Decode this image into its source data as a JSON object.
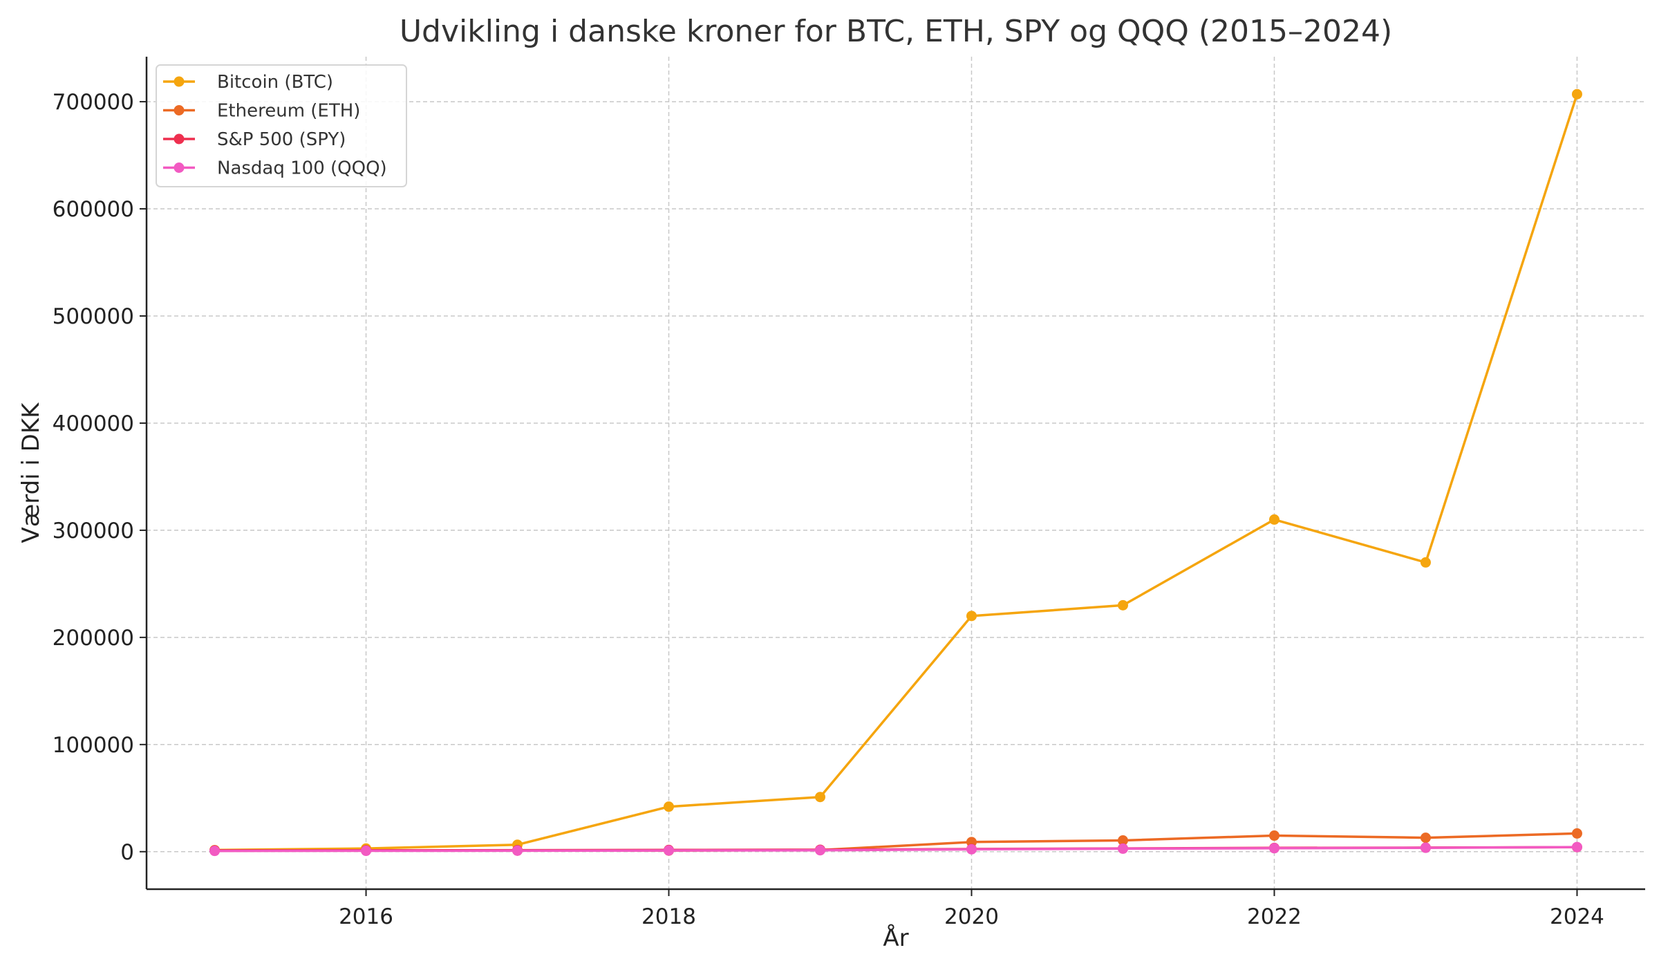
{
  "chart_data": {
    "type": "line",
    "title": "Udvikling i danske kroner for BTC, ETH, SPY og QQQ (2015–2024)",
    "xlabel": "År",
    "ylabel": "Værdi i DKK",
    "x": [
      2015,
      2016,
      2017,
      2018,
      2019,
      2020,
      2021,
      2022,
      2023,
      2024
    ],
    "xlim": [
      2014.55,
      2024.45
    ],
    "ylim": [
      -35000,
      742000
    ],
    "xticks": [
      2016,
      2018,
      2020,
      2022,
      2024
    ],
    "yticks": [
      0,
      100000,
      200000,
      300000,
      400000,
      500000,
      600000,
      700000
    ],
    "grid": true,
    "legend_position": "top-left",
    "series": [
      {
        "name": "Bitcoin (BTC)",
        "color": "#f5a50e",
        "values": [
          1500,
          3000,
          6500,
          42000,
          51000,
          220000,
          230000,
          310000,
          270000,
          707000
        ]
      },
      {
        "name": "Ethereum (ETH)",
        "color": "#ec6a24",
        "values": [
          1000,
          1000,
          1000,
          1000,
          1500,
          9000,
          10500,
          15000,
          13000,
          17000
        ]
      },
      {
        "name": "S&P 500 (SPY)",
        "color": "#ee2f4f",
        "values": [
          1200,
          1300,
          1400,
          1600,
          1800,
          2500,
          3000,
          3500,
          3800,
          4200
        ]
      },
      {
        "name": "Nasdaq 100 (QQQ)",
        "color": "#f25ac2",
        "values": [
          700,
          800,
          900,
          1100,
          1300,
          2200,
          2800,
          3200,
          3600,
          4300
        ]
      }
    ]
  }
}
